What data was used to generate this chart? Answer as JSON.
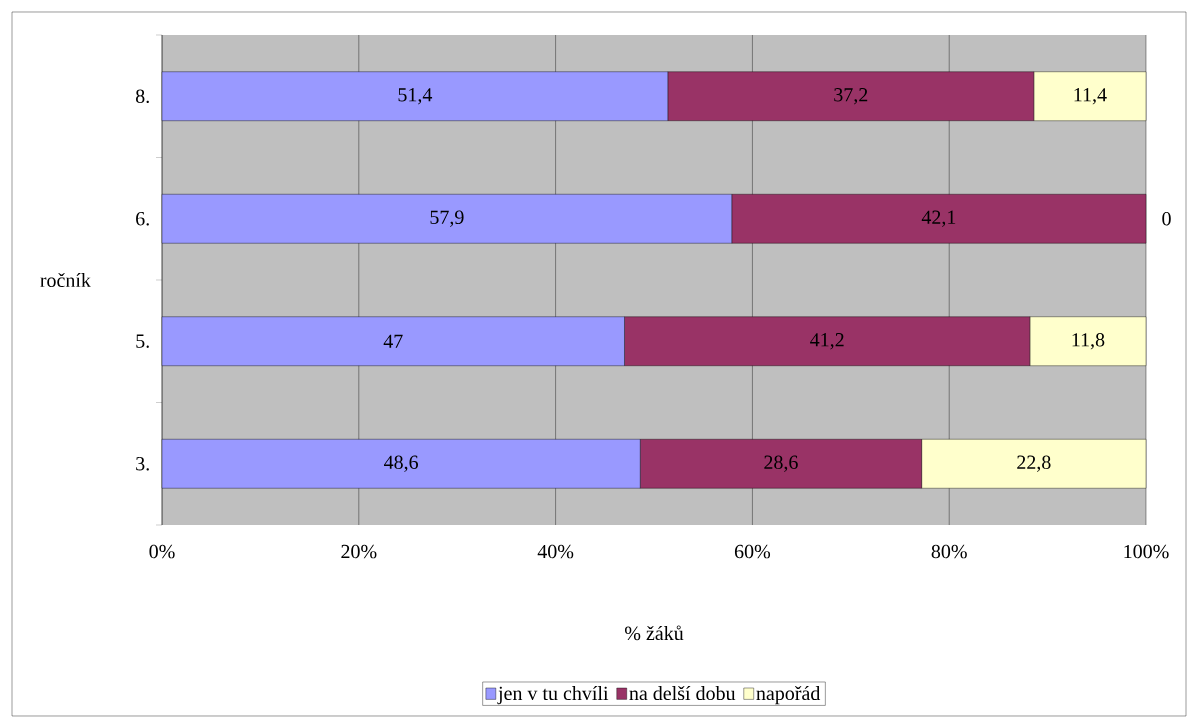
{
  "chart_data": {
    "type": "bar",
    "orientation": "horizontal",
    "stacked": true,
    "categories": [
      "8.",
      "6.",
      "5.",
      "3."
    ],
    "series": [
      {
        "name": "jen v tu chvíli",
        "color": "#9999ff",
        "values": [
          51.4,
          57.9,
          47,
          48.6
        ],
        "value_labels": [
          "51,4",
          "57,9",
          "47",
          "48,6"
        ]
      },
      {
        "name": "na delší dobu",
        "color": "#993366",
        "values": [
          37.2,
          42.1,
          41.2,
          28.6
        ],
        "value_labels": [
          "37,2",
          "42,1",
          "41,2",
          "28,6"
        ]
      },
      {
        "name": "napořád",
        "color": "#ffffcc",
        "values": [
          11.4,
          0,
          11.8,
          22.8
        ],
        "value_labels": [
          "11,4",
          "0",
          "11,8",
          "22,8"
        ]
      }
    ],
    "xlim": [
      0,
      100
    ],
    "xticks": [
      {
        "value": 0,
        "label": "0%"
      },
      {
        "value": 20,
        "label": "20%"
      },
      {
        "value": 40,
        "label": "40%"
      },
      {
        "value": 60,
        "label": "60%"
      },
      {
        "value": 80,
        "label": "80%"
      },
      {
        "value": 100,
        "label": "100%"
      }
    ],
    "xlabel": "% žáků",
    "ylabel": "ročník",
    "grid": "x",
    "legend": "bottom"
  }
}
